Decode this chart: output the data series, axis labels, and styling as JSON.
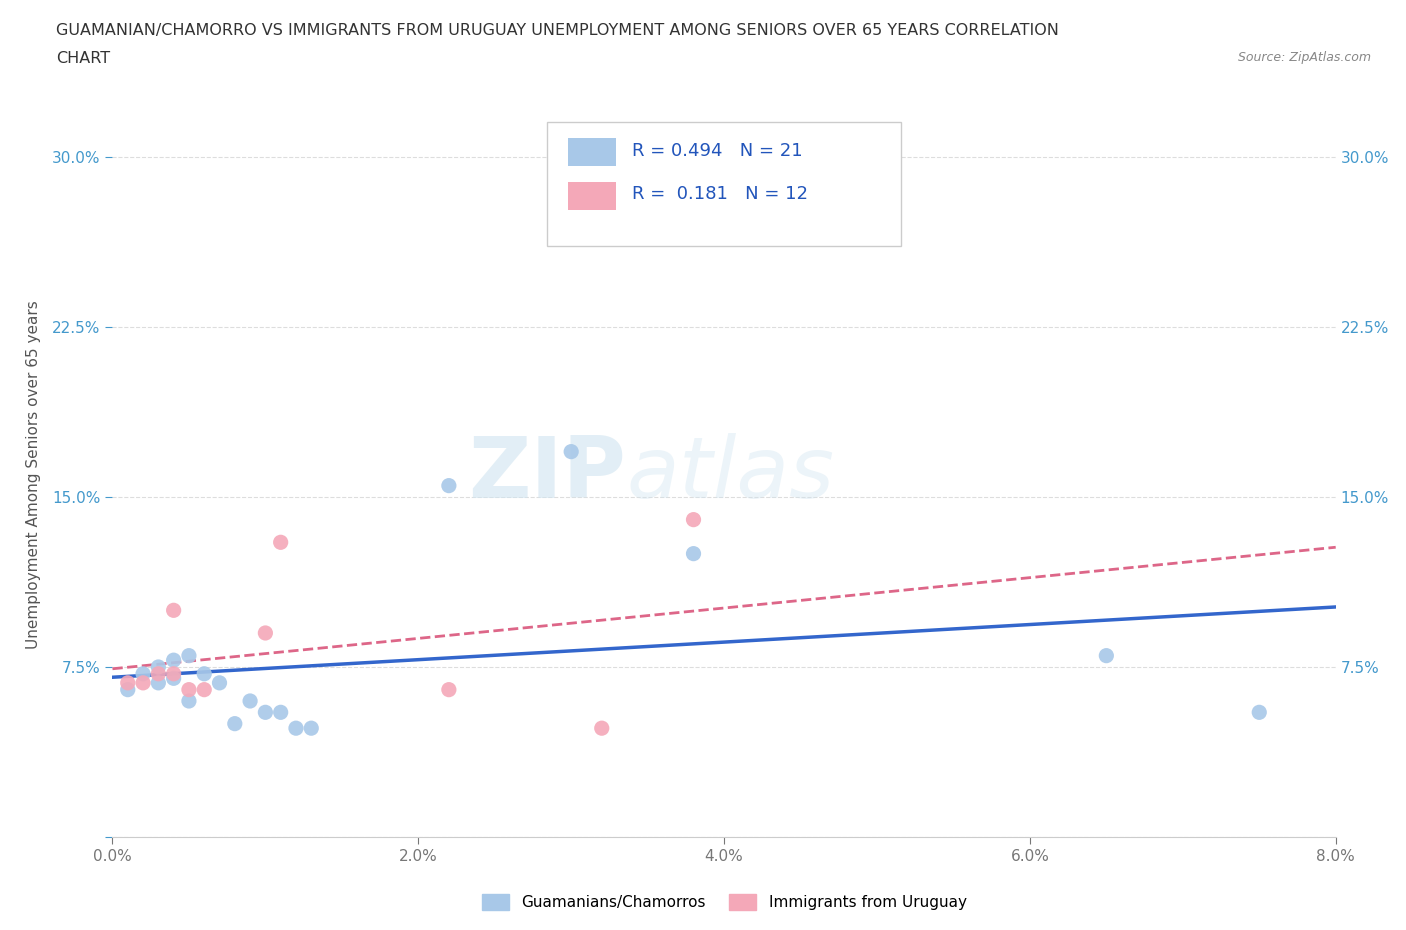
{
  "title_line1": "GUAMANIAN/CHAMORRO VS IMMIGRANTS FROM URUGUAY UNEMPLOYMENT AMONG SENIORS OVER 65 YEARS CORRELATION",
  "title_line2": "CHART",
  "source": "Source: ZipAtlas.com",
  "ylabel": "Unemployment Among Seniors over 65 years",
  "xmin": 0.0,
  "xmax": 0.08,
  "ymin": 0.0,
  "ymax": 0.32,
  "xticks": [
    0.0,
    0.02,
    0.04,
    0.06,
    0.08
  ],
  "xticklabels": [
    "0.0%",
    "2.0%",
    "4.0%",
    "6.0%",
    "8.0%"
  ],
  "yticks": [
    0.0,
    0.075,
    0.15,
    0.225,
    0.3
  ],
  "yticklabels": [
    "",
    "7.5%",
    "15.0%",
    "22.5%",
    "30.0%"
  ],
  "blue_scatter_x": [
    0.001,
    0.002,
    0.003,
    0.003,
    0.004,
    0.004,
    0.005,
    0.005,
    0.006,
    0.007,
    0.008,
    0.009,
    0.01,
    0.011,
    0.012,
    0.013,
    0.022,
    0.03,
    0.038,
    0.065,
    0.075
  ],
  "blue_scatter_y": [
    0.065,
    0.072,
    0.068,
    0.075,
    0.07,
    0.078,
    0.06,
    0.08,
    0.072,
    0.068,
    0.05,
    0.06,
    0.055,
    0.055,
    0.048,
    0.048,
    0.155,
    0.17,
    0.125,
    0.08,
    0.055
  ],
  "pink_scatter_x": [
    0.001,
    0.002,
    0.003,
    0.004,
    0.004,
    0.005,
    0.006,
    0.01,
    0.011,
    0.022,
    0.032,
    0.038
  ],
  "pink_scatter_y": [
    0.068,
    0.068,
    0.072,
    0.072,
    0.1,
    0.065,
    0.065,
    0.09,
    0.13,
    0.065,
    0.048,
    0.14
  ],
  "blue_R": 0.494,
  "blue_N": 21,
  "pink_R": 0.181,
  "pink_N": 12,
  "blue_color": "#a8c8e8",
  "pink_color": "#f4a8b8",
  "blue_line_color": "#3366cc",
  "pink_line_color": "#dd6688",
  "scatter_size": 120,
  "watermark_zip": "ZIP",
  "watermark_atlas": "atlas",
  "legend_label_blue": "Guamanians/Chamorros",
  "legend_label_pink": "Immigrants from Uruguay",
  "grid_color": "#dddddd",
  "background_color": "#ffffff"
}
